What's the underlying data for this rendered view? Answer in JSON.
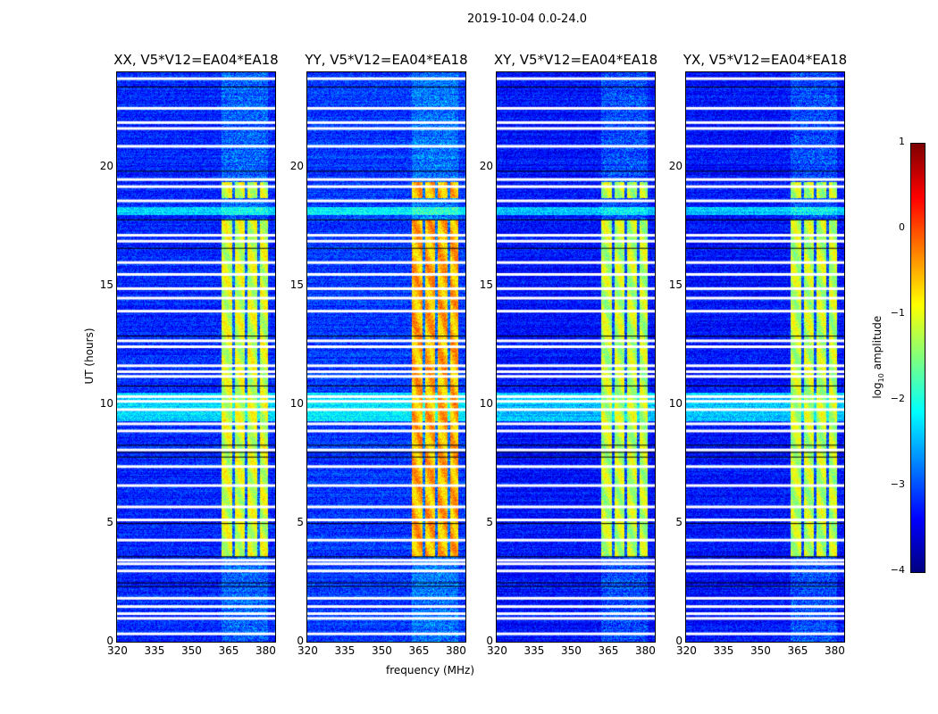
{
  "suptitle": "2019-10-04 0.0-24.0",
  "chart_data": {
    "type": "heatmap",
    "title": "2019-10-04 0.0-24.0",
    "xlabel": "frequency (MHz)",
    "ylabel": "UT (hours)",
    "xlim": [
      320,
      384
    ],
    "ylim": [
      0,
      24
    ],
    "xticks": [
      "320",
      "335",
      "350",
      "365",
      "380"
    ],
    "xtick_values": [
      320,
      335,
      350,
      365,
      380
    ],
    "yticks": [
      "0",
      "5",
      "10",
      "15",
      "20"
    ],
    "ytick_values": [
      0,
      5,
      10,
      15,
      20
    ],
    "colorbar": {
      "label_main": "log",
      "label_sub": "10",
      "label_rest": " amplitude",
      "range": [
        -4,
        1
      ],
      "ticks": [
        "1",
        "0",
        "−1",
        "−2",
        "−3",
        "−4"
      ],
      "tick_values": [
        1,
        0,
        -1,
        -2,
        -3,
        -4
      ],
      "colormap": "jet"
    },
    "panels": [
      {
        "title": "XX, V5*V12=EA04*EA18",
        "background_level": -3.2,
        "band_level": -1.1
      },
      {
        "title": "YY, V5*V12=EA04*EA18",
        "background_level": -3.1,
        "band_level": -0.5
      },
      {
        "title": "XY, V5*V12=EA04*EA18",
        "background_level": -3.3,
        "band_level": -1.2
      },
      {
        "title": "YX, V5*V12=EA04*EA18",
        "background_level": -3.3,
        "band_level": -1.2
      }
    ],
    "rfi_band_mhz": [
      362,
      381
    ],
    "rfi_band_gaps_mhz": [
      367,
      372,
      377
    ],
    "rfi_active_hours": [
      [
        3.6,
        17.8
      ],
      [
        18.7,
        19.4
      ]
    ],
    "elevated_hours": [
      [
        9.3,
        10.5
      ],
      [
        18.0,
        18.35
      ]
    ],
    "flagged_hours": [
      23.75,
      22.5,
      21.9,
      21.65,
      20.9,
      19.5,
      19.2,
      18.6,
      17.15,
      16.9,
      16.0,
      15.5,
      14.9,
      14.5,
      13.95,
      12.7,
      12.45,
      11.65,
      11.4,
      11.2,
      10.35,
      10.15,
      9.8,
      9.2,
      8.9,
      8.1,
      7.4,
      6.6,
      5.7,
      5.15,
      4.3,
      3.45,
      3.3,
      3.0,
      1.85,
      1.5,
      1.2,
      1.0,
      0.35
    ],
    "dark_hours": [
      23.4,
      19.85,
      17.8,
      16.6,
      12.9,
      10.8,
      8.3,
      8.0,
      7.8,
      5.0,
      3.6,
      2.5,
      2.35
    ]
  }
}
